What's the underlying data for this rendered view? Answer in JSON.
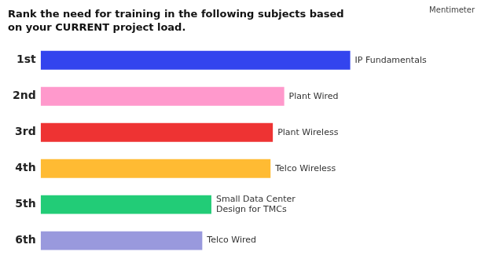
{
  "chart_data": {
    "type": "bar",
    "orientation": "horizontal",
    "title": [
      "Rank the need for training in the following subjects based",
      "on your CURRENT project load."
    ],
    "categories": [
      "1st",
      "2nd",
      "3rd",
      "4th",
      "5th",
      "6th"
    ],
    "values": [
      6.8,
      5.35,
      5.1,
      5.05,
      3.75,
      3.55
    ],
    "colors": [
      "#3344EE",
      "#FF99CC",
      "#EE3333",
      "#FFBB33",
      "#22CC77",
      "#9999DD"
    ],
    "annotations": [
      "IP Fundamentals",
      "Plant Wired",
      "Plant Wireless",
      "Telco Wireless",
      "Small Data Center\nDesign for TMCs",
      "Telco Wired",
      "Mentimeter"
    ],
    "xlim": [
      0,
      9.5
    ],
    "grid": false,
    "tick_labels": "y"
  }
}
